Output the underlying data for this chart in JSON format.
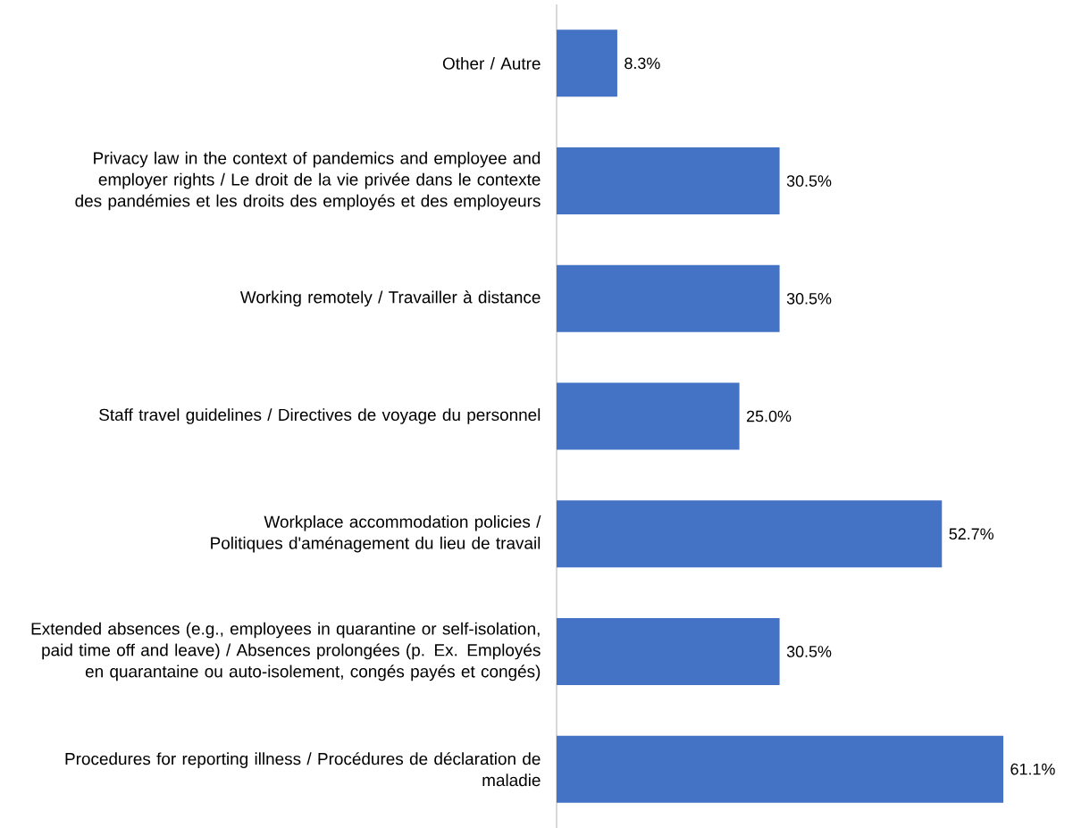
{
  "chart_data": {
    "type": "bar",
    "orientation": "horizontal",
    "categories": [
      "Other / Autre",
      "Privacy law in the context of pandemics and employee and employer rights / Le droit de la vie privée dans le contexte des pandémies et les droits des employés et des employeurs",
      "Working remotely / Travailler à distance",
      "Staff travel guidelines / Directives de voyage du personnel",
      "Workplace accommodation policies / Politiques d'aménagement du lieu de travail",
      "Extended absences (e.g., employees in quarantine or self-isolation, paid time off and leave) / Absences prolongées (p. Ex. Employés en quarantaine ou auto-isolement, congés payés et congés)",
      "Procedures for reporting illness / Procédures de déclaration de maladie"
    ],
    "values": [
      8.3,
      30.5,
      30.5,
      25.0,
      52.7,
      30.5,
      61.1
    ],
    "value_labels": [
      "8.3%",
      "30.5%",
      "30.5%",
      "25.0%",
      "52.7%",
      "30.5%",
      "61.1%"
    ],
    "color": "#4472c4",
    "tick_labels": "y"
  }
}
